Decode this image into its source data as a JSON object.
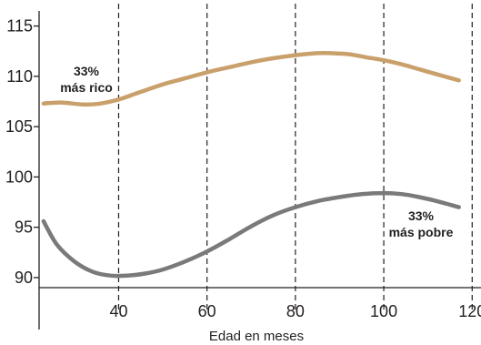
{
  "chart_data": {
    "type": "line",
    "title": "",
    "xlabel": "Edad en meses",
    "ylabel": "",
    "xlim": [
      22,
      122
    ],
    "ylim": [
      89,
      116.5
    ],
    "x_ticks": [
      40,
      60,
      80,
      100,
      120
    ],
    "y_ticks": [
      90,
      95,
      100,
      105,
      110,
      115
    ],
    "x_tick_labels": [
      "40",
      "60",
      "80",
      "100",
      "120"
    ],
    "y_tick_labels": [
      "90",
      "95",
      "100",
      "105",
      "110",
      "115"
    ],
    "vertical_gridlines": "dashed at each x tick",
    "legend": "none",
    "series": [
      {
        "label_lines": [
          "33%",
          "más rico"
        ],
        "color": "#c9a06b",
        "x": [
          23,
          27,
          32,
          36,
          40,
          44,
          50,
          55,
          60,
          65,
          70,
          75,
          80,
          85,
          88,
          92,
          96,
          100,
          104,
          108,
          112,
          117
        ],
        "y": [
          107.3,
          107.4,
          107.2,
          107.3,
          107.7,
          108.3,
          109.2,
          109.8,
          110.4,
          110.9,
          111.4,
          111.8,
          112.1,
          112.3,
          112.3,
          112.2,
          111.9,
          111.6,
          111.2,
          110.7,
          110.2,
          109.6
        ]
      },
      {
        "label_lines": [
          "33%",
          "más pobre"
        ],
        "color": "#7a7a7a",
        "x": [
          23,
          26,
          30,
          34,
          38,
          42,
          46,
          50,
          55,
          60,
          65,
          70,
          75,
          80,
          85,
          90,
          95,
          100,
          104,
          108,
          112,
          117
        ],
        "y": [
          95.6,
          93.3,
          91.6,
          90.6,
          90.2,
          90.2,
          90.4,
          90.8,
          91.6,
          92.6,
          93.8,
          95.1,
          96.2,
          97.0,
          97.6,
          98.0,
          98.3,
          98.4,
          98.3,
          98.0,
          97.6,
          97.0
        ]
      }
    ]
  }
}
